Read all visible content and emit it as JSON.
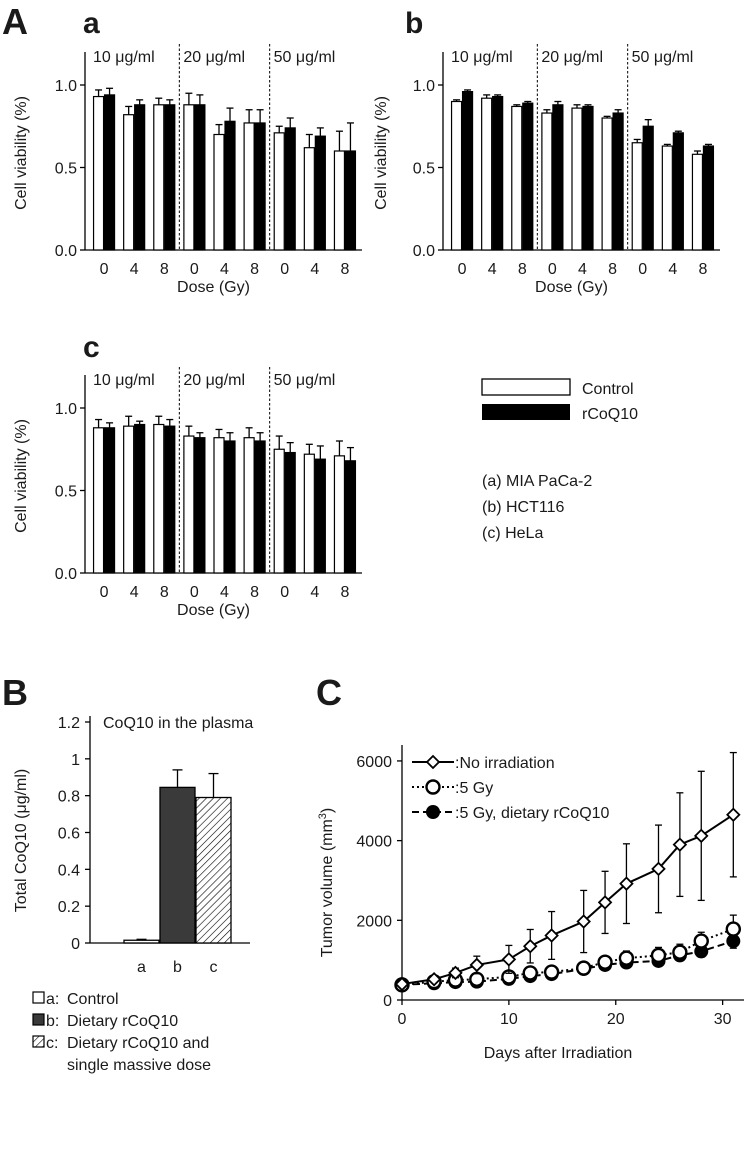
{
  "panels": {
    "A": "A",
    "B": "B",
    "C": "C"
  },
  "chart_data": [
    {
      "id": "A-a",
      "type": "bar",
      "panel_label": "a",
      "title": "",
      "xlabel": "Dose (Gy)",
      "ylabel": "Cell viability (%)",
      "ylim": [
        0,
        1.2
      ],
      "yticks": [
        "0.0",
        "0.5",
        "1.0"
      ],
      "ytick_values": [
        0,
        0.5,
        1.0
      ],
      "groups": [
        "10 μg/ml",
        "20 μg/ml",
        "50 μg/ml"
      ],
      "categories": [
        "0",
        "4",
        "8",
        "0",
        "4",
        "8",
        "0",
        "4",
        "8"
      ],
      "series": [
        {
          "name": "Control",
          "values": [
            0.93,
            0.82,
            0.88,
            0.88,
            0.7,
            0.77,
            0.71,
            0.62,
            0.6
          ],
          "errors": [
            0.04,
            0.05,
            0.04,
            0.07,
            0.06,
            0.08,
            0.04,
            0.08,
            0.12
          ]
        },
        {
          "name": "rCoQ10",
          "values": [
            0.94,
            0.88,
            0.88,
            0.88,
            0.78,
            0.77,
            0.74,
            0.69,
            0.6
          ],
          "errors": [
            0.04,
            0.03,
            0.03,
            0.06,
            0.08,
            0.08,
            0.06,
            0.05,
            0.17
          ]
        }
      ]
    },
    {
      "id": "A-b",
      "type": "bar",
      "panel_label": "b",
      "title": "",
      "xlabel": "Dose (Gy)",
      "ylabel": "Cell viability (%)",
      "ylim": [
        0,
        1.2
      ],
      "yticks": [
        "0.0",
        "0.5",
        "1.0"
      ],
      "ytick_values": [
        0,
        0.5,
        1.0
      ],
      "groups": [
        "10 μg/ml",
        "20 μg/ml",
        "50 μg/ml"
      ],
      "categories": [
        "0",
        "4",
        "8",
        "0",
        "4",
        "8",
        "0",
        "4",
        "8"
      ],
      "series": [
        {
          "name": "Control",
          "values": [
            0.9,
            0.92,
            0.87,
            0.83,
            0.86,
            0.8,
            0.65,
            0.63,
            0.58
          ],
          "errors": [
            0.01,
            0.02,
            0.01,
            0.02,
            0.02,
            0.01,
            0.02,
            0.01,
            0.02
          ]
        },
        {
          "name": "rCoQ10",
          "values": [
            0.96,
            0.93,
            0.89,
            0.88,
            0.87,
            0.83,
            0.75,
            0.71,
            0.63
          ],
          "errors": [
            0.01,
            0.01,
            0.01,
            0.02,
            0.01,
            0.02,
            0.04,
            0.01,
            0.01
          ]
        }
      ]
    },
    {
      "id": "A-c",
      "type": "bar",
      "panel_label": "c",
      "title": "",
      "xlabel": "Dose (Gy)",
      "ylabel": "Cell viability (%)",
      "ylim": [
        0,
        1.2
      ],
      "yticks": [
        "0.0",
        "0.5",
        "1.0"
      ],
      "ytick_values": [
        0,
        0.5,
        1.0
      ],
      "groups": [
        "10 μg/ml",
        "20 μg/ml",
        "50 μg/ml"
      ],
      "categories": [
        "0",
        "4",
        "8",
        "0",
        "4",
        "8",
        "0",
        "4",
        "8"
      ],
      "series": [
        {
          "name": "Control",
          "values": [
            0.88,
            0.89,
            0.9,
            0.83,
            0.82,
            0.82,
            0.75,
            0.72,
            0.71
          ],
          "errors": [
            0.05,
            0.06,
            0.05,
            0.06,
            0.05,
            0.06,
            0.08,
            0.06,
            0.09
          ]
        },
        {
          "name": "rCoQ10",
          "values": [
            0.88,
            0.9,
            0.89,
            0.82,
            0.8,
            0.8,
            0.73,
            0.69,
            0.68
          ],
          "errors": [
            0.03,
            0.02,
            0.04,
            0.03,
            0.05,
            0.05,
            0.06,
            0.08,
            0.08
          ]
        }
      ]
    },
    {
      "id": "B",
      "type": "bar",
      "title": "CoQ10 in the plasma",
      "xlabel": "",
      "ylabel": "Total CoQ10 (μg/ml)",
      "ylim": [
        0,
        1.2
      ],
      "yticks": [
        "0",
        "0.2",
        "0.4",
        "0.6",
        "0.8",
        "1",
        "1.2"
      ],
      "ytick_values": [
        0,
        0.2,
        0.4,
        0.6,
        0.8,
        1.0,
        1.2
      ],
      "categories": [
        "a",
        "b",
        "c"
      ],
      "values": [
        0.015,
        0.845,
        0.79
      ],
      "errors": [
        0.005,
        0.095,
        0.13
      ],
      "fills": [
        "white",
        "dark",
        "hatch"
      ]
    },
    {
      "id": "C",
      "type": "line",
      "xlabel": "Days after Irradiation",
      "ylabel_main": "Tumor volume (mm",
      "ylabel_sup": "3",
      "ylabel_end": ")",
      "xlim": [
        0,
        32
      ],
      "ylim": [
        0,
        6400
      ],
      "xticks": [
        "0",
        "10",
        "20",
        "30"
      ],
      "xtick_values": [
        0,
        10,
        20,
        30
      ],
      "yticks": [
        "0",
        "2000",
        "4000",
        "6000"
      ],
      "ytick_values": [
        0,
        2000,
        4000,
        6000
      ],
      "series": [
        {
          "name": ":No irradiation",
          "marker": "diamond",
          "line": "solid",
          "x": [
            0,
            3,
            5,
            7,
            10,
            12,
            14,
            17,
            19,
            21,
            24,
            26,
            28,
            31
          ],
          "y": [
            400,
            520,
            680,
            880,
            1020,
            1350,
            1620,
            1970,
            2450,
            2920,
            3290,
            3900,
            4120,
            4650
          ],
          "err": [
            0,
            80,
            120,
            220,
            350,
            420,
            600,
            780,
            780,
            1000,
            1100,
            1300,
            1620,
            1560
          ]
        },
        {
          "name": ":5 Gy",
          "marker": "open-circle",
          "line": "dotted",
          "x": [
            0,
            3,
            5,
            7,
            10,
            12,
            14,
            17,
            19,
            21,
            24,
            26,
            28,
            31
          ],
          "y": [
            380,
            460,
            500,
            520,
            580,
            680,
            700,
            800,
            950,
            1050,
            1120,
            1200,
            1480,
            1780
          ],
          "err": [
            0,
            40,
            50,
            60,
            80,
            100,
            110,
            130,
            150,
            180,
            200,
            200,
            220,
            350
          ]
        },
        {
          "name": ":5 Gy, dietary rCoQ10",
          "marker": "filled-circle",
          "line": "dashed",
          "x": [
            0,
            3,
            5,
            7,
            10,
            12,
            14,
            17,
            19,
            21,
            24,
            26,
            28,
            31
          ],
          "y": [
            380,
            420,
            450,
            460,
            530,
            600,
            650,
            780,
            880,
            940,
            980,
            1120,
            1220,
            1480
          ],
          "err": [
            0,
            30,
            40,
            50,
            60,
            70,
            80,
            90,
            100,
            110,
            120,
            130,
            140,
            180
          ]
        }
      ]
    }
  ],
  "legendA": {
    "control": "Control",
    "rcoq10": "rCoQ10",
    "lines": [
      "(a)  MIA PaCa-2",
      "(b)  HCT116",
      "(c)  HeLa"
    ]
  },
  "legendB": [
    {
      "key": "a:",
      "text": "Control",
      "fill": "white"
    },
    {
      "key": "b:",
      "text": "Dietary rCoQ10",
      "fill": "dark"
    },
    {
      "key": "c:",
      "text": "Dietary rCoQ10 and",
      "fill": "hatch"
    },
    {
      "key": "",
      "text": "single massive dose",
      "fill": "none"
    }
  ],
  "colors": {
    "dark_bar": "#3a3a3a",
    "black": "#000000",
    "white": "#ffffff"
  }
}
